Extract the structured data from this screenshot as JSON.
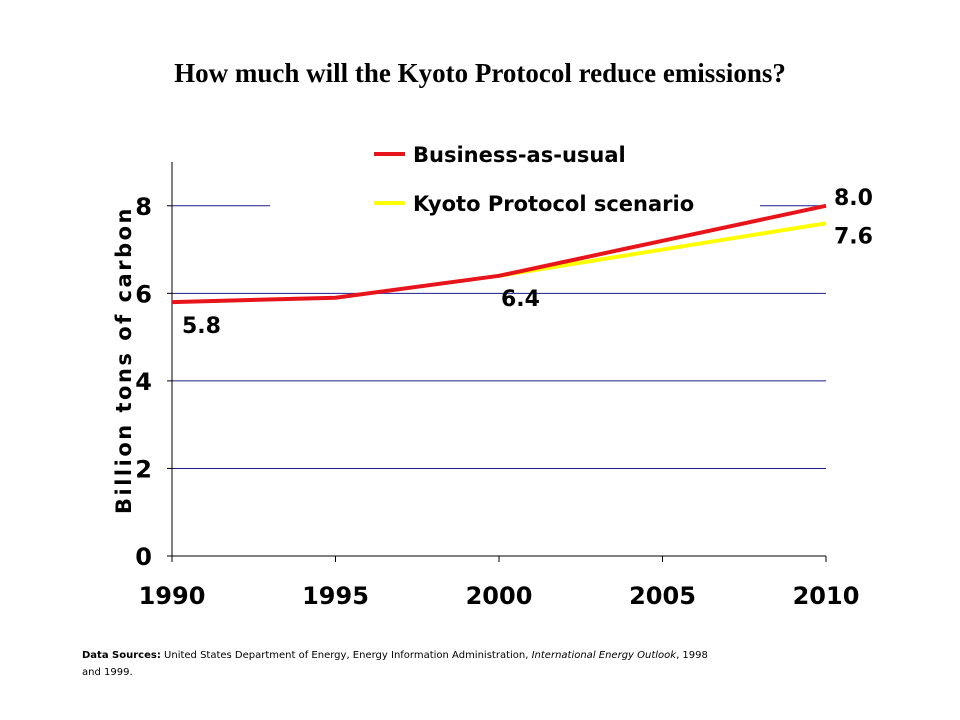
{
  "title": "How much will the Kyoto Protocol reduce emissions?",
  "chart_data": {
    "type": "line",
    "title": "How much will the Kyoto Protocol reduce emissions?",
    "ylabel": "Billion tons of carbon",
    "xlabel": "",
    "xlim": [
      1990,
      2010
    ],
    "ylim": [
      0,
      9
    ],
    "x_ticks": [
      "1990",
      "1995",
      "2000",
      "2005",
      "2010"
    ],
    "y_ticks": [
      "0",
      "2",
      "4",
      "6",
      "8"
    ],
    "grid": "horizontal",
    "legend_position": "top",
    "series": [
      {
        "name": "Business-as-usual",
        "color": "#e8141b",
        "x": [
          1990,
          1995,
          2000,
          2005,
          2010
        ],
        "y": [
          5.8,
          5.9,
          6.4,
          7.2,
          8.0
        ]
      },
      {
        "name": "Kyoto Protocol scenario",
        "color": "#ffff00",
        "x": [
          2000,
          2005,
          2010
        ],
        "y": [
          6.4,
          7.0,
          7.6
        ]
      }
    ],
    "annotations": [
      {
        "text": "5.8",
        "x": 1990,
        "y": 5.8
      },
      {
        "text": "6.4",
        "x": 2000,
        "y": 6.4
      },
      {
        "text": "8.0",
        "x": 2010,
        "y": 8.0
      },
      {
        "text": "7.6",
        "x": 2010,
        "y": 7.6
      }
    ]
  },
  "source": {
    "label": "Data Sources:",
    "text": "United States Department of Energy, Energy Information Administration,",
    "italic": "International Energy Outlook",
    "tail": ", 1998 and 1999."
  }
}
